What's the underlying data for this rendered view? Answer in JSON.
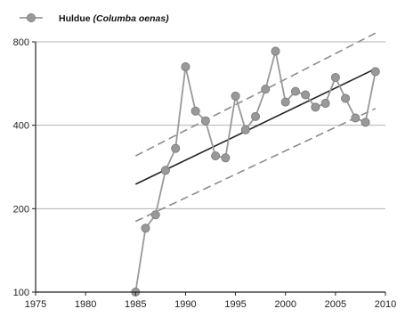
{
  "chart_data": {
    "type": "line",
    "title": "",
    "xlabel": "",
    "ylabel": "",
    "y_scale": "log",
    "xlim": [
      1975,
      2010
    ],
    "ylim": [
      100,
      800
    ],
    "x_ticks": [
      1975,
      1980,
      1985,
      1990,
      1995,
      2000,
      2005,
      2010
    ],
    "y_ticks": [
      100,
      200,
      400,
      800
    ],
    "y_gridlines": [
      200,
      400,
      800
    ],
    "legend_position": "top-left",
    "colors": {
      "series": "#999999",
      "series_edge": "#777777",
      "trend": "#222222",
      "ci": "#8c8c8c",
      "grid": "#b3b3b3",
      "axis": "#222222"
    },
    "series": [
      {
        "name": "Huldue (Columba oenas)",
        "legend_prefix": "Huldue ",
        "legend_italic": "(Columba oenas)",
        "x": [
          1985,
          1986,
          1987,
          1988,
          1989,
          1990,
          1991,
          1992,
          1993,
          1994,
          1995,
          1996,
          1997,
          1998,
          1999,
          2000,
          2001,
          2002,
          2003,
          2004,
          2005,
          2006,
          2007,
          2008,
          2009
        ],
        "values": [
          100,
          170,
          190,
          275,
          330,
          650,
          450,
          415,
          310,
          305,
          510,
          385,
          430,
          540,
          740,
          485,
          530,
          515,
          465,
          480,
          595,
          500,
          425,
          410,
          625
        ]
      }
    ],
    "trend": {
      "x": [
        1985,
        2009
      ],
      "values": [
        245,
        640
      ]
    },
    "ci_upper": {
      "x": [
        1985,
        2009
      ],
      "values": [
        310,
        860
      ]
    },
    "ci_lower": {
      "x": [
        1985,
        2009
      ],
      "values": [
        180,
        460
      ]
    }
  }
}
